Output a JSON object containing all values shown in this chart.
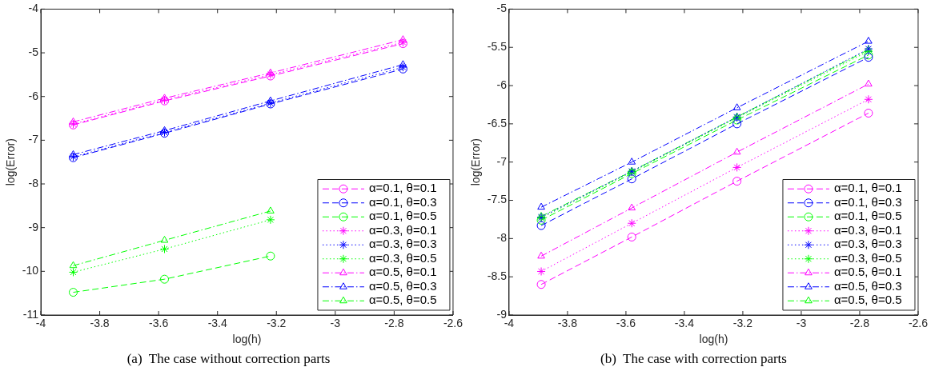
{
  "chart_data": [
    {
      "type": "line",
      "title": "(a)  The case without correction parts",
      "xlabel": "log(h)",
      "ylabel": "log(Error)",
      "x": [
        -3.89,
        -3.58,
        -3.22,
        -2.77
      ],
      "xlim": [
        -4,
        -2.6
      ],
      "xticks": [
        -4,
        -3.8,
        -3.6,
        -3.4,
        -3.2,
        -3,
        -2.8,
        -2.6
      ],
      "ylim": [
        -11,
        -4
      ],
      "yticks": [
        -11,
        -10,
        -9,
        -8,
        -7,
        -6,
        -5,
        -4
      ],
      "grid": false,
      "legend": "bottom right",
      "series": [
        {
          "name": "α=0.1, θ=0.1",
          "color": "#ff00ff",
          "marker": "circle",
          "line_style": "dashed",
          "values": [
            -6.65,
            -6.1,
            -5.53,
            -4.79
          ]
        },
        {
          "name": "α=0.1, θ=0.3",
          "color": "#0000ff",
          "marker": "circle",
          "line_style": "dashed",
          "values": [
            -7.4,
            -6.84,
            -6.17,
            -5.37
          ]
        },
        {
          "name": "α=0.1, θ=0.5",
          "color": "#00ff00",
          "marker": "circle",
          "line_style": "dashed",
          "values": [
            -10.48,
            -10.18,
            -9.65,
            null
          ]
        },
        {
          "name": "α=0.3, θ=0.1",
          "color": "#ff00ff",
          "marker": "cross",
          "line_style": "dotted",
          "values": [
            -6.63,
            -6.08,
            -5.5,
            -4.76
          ]
        },
        {
          "name": "α=0.3, θ=0.3",
          "color": "#0000ff",
          "marker": "cross",
          "line_style": "dotted",
          "values": [
            -7.38,
            -6.82,
            -6.15,
            -5.33
          ]
        },
        {
          "name": "α=0.3, θ=0.5",
          "color": "#00ff00",
          "marker": "cross",
          "line_style": "dotted",
          "values": [
            -10.02,
            -9.49,
            -8.82,
            null
          ]
        },
        {
          "name": "α=0.5, θ=0.1",
          "color": "#ff00ff",
          "marker": "triangle",
          "line_style": "dashdot",
          "values": [
            -6.58,
            -6.04,
            -5.46,
            -4.7
          ]
        },
        {
          "name": "α=0.5, θ=0.3",
          "color": "#0000ff",
          "marker": "triangle",
          "line_style": "dashdot",
          "values": [
            -7.33,
            -6.78,
            -6.1,
            -5.27
          ]
        },
        {
          "name": "α=0.5, θ=0.5",
          "color": "#00ff00",
          "marker": "triangle",
          "line_style": "dashdot",
          "values": [
            -9.87,
            -9.29,
            -8.62,
            null
          ]
        }
      ]
    },
    {
      "type": "line",
      "title": "(b)  The case with correction parts",
      "xlabel": "log(h)",
      "ylabel": "log(Error)",
      "x": [
        -3.89,
        -3.58,
        -3.22,
        -2.77
      ],
      "xlim": [
        -4,
        -2.6
      ],
      "xticks": [
        -4,
        -3.8,
        -3.6,
        -3.4,
        -3.2,
        -3,
        -2.8,
        -2.6
      ],
      "ylim": [
        -9,
        -5
      ],
      "yticks": [
        -9,
        -8.5,
        -8,
        -7.5,
        -7,
        -6.5,
        -6,
        -5.5,
        -5
      ],
      "grid": false,
      "legend": "bottom right",
      "series": [
        {
          "name": "α=0.1, θ=0.1",
          "color": "#ff00ff",
          "marker": "circle",
          "line_style": "dashed",
          "values": [
            -8.6,
            -7.98,
            -7.25,
            -6.36
          ]
        },
        {
          "name": "α=0.1, θ=0.3",
          "color": "#0000ff",
          "marker": "circle",
          "line_style": "dashed",
          "values": [
            -7.83,
            -7.22,
            -6.5,
            -5.63
          ]
        },
        {
          "name": "α=0.1, θ=0.5",
          "color": "#00ff00",
          "marker": "circle",
          "line_style": "dashed",
          "values": [
            -7.76,
            -7.15,
            -6.45,
            -5.6
          ]
        },
        {
          "name": "α=0.3, θ=0.1",
          "color": "#ff00ff",
          "marker": "cross",
          "line_style": "dotted",
          "values": [
            -8.43,
            -7.8,
            -7.07,
            -6.18
          ]
        },
        {
          "name": "α=0.3, θ=0.3",
          "color": "#0000ff",
          "marker": "cross",
          "line_style": "dotted",
          "values": [
            -7.72,
            -7.12,
            -6.41,
            -5.52
          ]
        },
        {
          "name": "α=0.3, θ=0.5",
          "color": "#00ff00",
          "marker": "cross",
          "line_style": "dotted",
          "values": [
            -7.73,
            -7.13,
            -6.42,
            -5.55
          ]
        },
        {
          "name": "α=0.5, θ=0.1",
          "color": "#ff00ff",
          "marker": "triangle",
          "line_style": "dashdot",
          "values": [
            -8.23,
            -7.6,
            -6.87,
            -5.98
          ]
        },
        {
          "name": "α=0.5, θ=0.3",
          "color": "#0000ff",
          "marker": "triangle",
          "line_style": "dashdot",
          "values": [
            -7.59,
            -7.0,
            -6.29,
            -5.42
          ]
        },
        {
          "name": "α=0.5, θ=0.5",
          "color": "#00ff00",
          "marker": "triangle",
          "line_style": "dashdot",
          "values": [
            -7.71,
            -7.12,
            -6.41,
            -5.53
          ]
        }
      ]
    }
  ]
}
